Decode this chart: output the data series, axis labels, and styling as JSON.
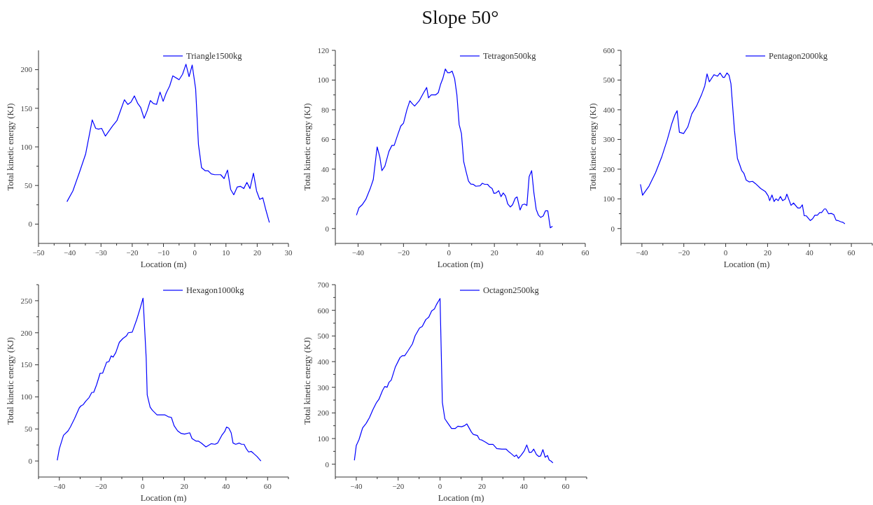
{
  "chart_data": [
    {
      "type": "line",
      "xlabel": "Location (m)",
      "ylabel": "Total kinetic energy (KJ)",
      "legend": "top right",
      "xlim": [
        -50,
        30
      ],
      "xticks": [
        -50,
        {
          "value": -45,
          "label": null
        },
        -40,
        {
          "value": -35,
          "label": null
        },
        -30,
        {
          "value": -25,
          "label": null
        },
        -20,
        {
          "value": -15,
          "label": null
        },
        -10,
        {
          "value": -5,
          "label": null
        },
        0,
        {
          "value": 5,
          "label": null
        },
        10,
        {
          "value": 15,
          "label": null
        },
        20,
        {
          "value": 25,
          "label": null
        },
        30
      ],
      "ylim": [
        -25,
        225
      ],
      "yticks": [
        0,
        {
          "value": 25,
          "label": null
        },
        50,
        {
          "value": 75,
          "label": null
        },
        100,
        {
          "value": 125,
          "label": null
        },
        150,
        {
          "value": 175,
          "label": null
        },
        200
      ],
      "series": [
        {
          "name": "Triangle1500kg",
          "color": "#0000ff",
          "x": [
            -40.9,
            -39.0,
            -36.9,
            -34.9,
            -32.8,
            -31.7,
            -30.8,
            -29.8,
            -28.6,
            -26.3,
            -24.9,
            -23.4,
            -22.5,
            -21.4,
            -20.4,
            -19.3,
            -18.2,
            -17.3,
            -16.2,
            -15.2,
            -14.2,
            -13.2,
            -12.2,
            -11.1,
            -10.1,
            -9.1,
            -8.0,
            -7.0,
            -5.0,
            -3.9,
            -2.8,
            -1.8,
            -0.8,
            0.3,
            1.2,
            2.2,
            3.4,
            4.3,
            5.3,
            6.4,
            8.3,
            9.4,
            10.5,
            11.5,
            12.5,
            13.6,
            14.6,
            15.7,
            16.7,
            17.7,
            18.8,
            19.8,
            20.8,
            21.8,
            22.8,
            23.9
          ],
          "values": [
            29,
            43,
            67,
            91,
            135,
            124,
            123,
            124,
            114,
            127,
            134,
            151,
            161,
            155,
            158,
            166,
            156,
            151,
            137,
            147,
            160,
            156,
            155,
            171,
            159,
            170,
            179,
            192,
            187,
            194,
            207,
            191,
            206,
            175,
            103,
            73,
            69,
            69,
            65,
            64,
            64,
            59,
            70,
            45,
            38,
            48,
            49,
            46,
            54,
            46,
            66,
            43,
            32,
            34,
            18,
            2
          ]
        }
      ]
    },
    {
      "type": "line",
      "title": "Slope 50°",
      "xlabel": "Location (m)",
      "ylabel": "Total kinetic energy (KJ)",
      "legend": "top right",
      "xlim": [
        -50,
        60
      ],
      "xticks": [
        {
          "value": -50,
          "label": null
        },
        -40,
        {
          "value": -30,
          "label": null
        },
        -20,
        {
          "value": -10,
          "label": null
        },
        0,
        {
          "value": 10,
          "label": null
        },
        20,
        {
          "value": 30,
          "label": null
        },
        40,
        {
          "value": 50,
          "label": null
        },
        60
      ],
      "ylim": [
        -10,
        120
      ],
      "yticks": [
        0,
        {
          "value": 10,
          "label": null
        },
        20,
        {
          "value": 30,
          "label": null
        },
        40,
        {
          "value": 50,
          "label": null
        },
        60,
        {
          "value": 70,
          "label": null
        },
        80,
        {
          "value": 90,
          "label": null
        },
        100,
        {
          "value": 110,
          "label": null
        },
        120
      ],
      "series": [
        {
          "name": "Tetragon500kg",
          "color": "#0000ff",
          "x": [
            -40.7,
            -39.6,
            -38.2,
            -36.6,
            -34.7,
            -33.3,
            -31.6,
            -30.4,
            -29.5,
            -28.2,
            -26.4,
            -25.1,
            -24.1,
            -22.8,
            -21.2,
            -20.0,
            -18.5,
            -17.2,
            -16.1,
            -15.1,
            -13.1,
            -11.3,
            -9.8,
            -9.0,
            -7.8,
            -5.9,
            -4.7,
            -3.7,
            -2.7,
            -1.6,
            -0.6,
            0.4,
            1.4,
            2.5,
            3.5,
            4.5,
            5.5,
            6.5,
            7.6,
            8.6,
            9.6,
            10.8,
            11.8,
            13.7,
            14.7,
            15.7,
            17.0,
            18.0,
            19.0,
            19.8,
            20.8,
            21.9,
            22.9,
            23.9,
            24.9,
            25.9,
            27.0,
            28.0,
            29.2,
            30.0,
            31.3,
            32.3,
            33.3,
            34.3,
            35.3,
            36.4,
            37.4,
            38.4,
            39.4,
            40.4,
            41.5,
            42.5,
            43.5,
            44.6,
            45.6
          ],
          "values": [
            9,
            14,
            16,
            19.6,
            26.7,
            33,
            55,
            48,
            39,
            42,
            52,
            56,
            56,
            62,
            69,
            71,
            80,
            86,
            84,
            82.5,
            86,
            91,
            95,
            88,
            90,
            90,
            91.5,
            97,
            101,
            107.5,
            105,
            105,
            106,
            101,
            90,
            70,
            64,
            45,
            38,
            32,
            30,
            29.7,
            28.5,
            28.8,
            30.5,
            29.8,
            29.8,
            28,
            27,
            23.7,
            24,
            25.5,
            21.5,
            24,
            22,
            16.5,
            14.5,
            16,
            20.5,
            21.3,
            12.5,
            16,
            16.5,
            15.5,
            35,
            39,
            24,
            13,
            9,
            7.5,
            8.5,
            12,
            12,
            0.5,
            1.5
          ]
        }
      ]
    },
    {
      "type": "line",
      "xlabel": "Location (m)",
      "ylabel": "Total kinetic energy (KJ)",
      "legend": "top right",
      "xlim": [
        -50,
        70
      ],
      "xticks": [
        {
          "value": -50,
          "label": null
        },
        -40,
        {
          "value": -30,
          "label": null
        },
        -20,
        {
          "value": -10,
          "label": null
        },
        0,
        {
          "value": 10,
          "label": null
        },
        20,
        {
          "value": 30,
          "label": null
        },
        40,
        {
          "value": 50,
          "label": null
        },
        60,
        {
          "value": 70,
          "label": null
        }
      ],
      "ylim": [
        -50,
        600
      ],
      "yticks": [
        0,
        {
          "value": 50,
          "label": null
        },
        100,
        {
          "value": 150,
          "label": null
        },
        200,
        {
          "value": 250,
          "label": null
        },
        300,
        {
          "value": 350,
          "label": null
        },
        400,
        {
          "value": 450,
          "label": null
        },
        500,
        {
          "value": 550,
          "label": null
        },
        600
      ],
      "series": [
        {
          "name": "Pentagon2000kg",
          "color": "#0000ff",
          "x": [
            -40.7,
            -39.7,
            -36.6,
            -33.5,
            -30.4,
            -27.9,
            -25.7,
            -24.3,
            -23.2,
            -22.1,
            -20.1,
            -18.1,
            -16.2,
            -13.9,
            -11.4,
            -10.0,
            -8.9,
            -7.8,
            -5.6,
            -3.9,
            -2.7,
            -1.3,
            -0.6,
            0.6,
            1.6,
            2.5,
            4.2,
            5.6,
            6.7,
            7.6,
            8.7,
            9.8,
            11.2,
            12.8,
            14.3,
            16.7,
            19.0,
            20.3,
            21.0,
            22.1,
            23.1,
            24.0,
            25.1,
            26.1,
            27.2,
            28.4,
            29.2,
            31.2,
            32.4,
            34.4,
            35.5,
            36.6,
            37.5,
            38.5,
            40.4,
            41.5,
            42.6,
            43.8,
            44.9,
            45.8,
            47.1,
            47.8,
            49.1,
            50.4,
            51.6,
            52.7,
            53.6,
            54.9,
            56.0,
            56.9
          ],
          "values": [
            149,
            112,
            143,
            188,
            244,
            299,
            354,
            382,
            397,
            324,
            320,
            342,
            386,
            413,
            453,
            480,
            521,
            494,
            518,
            513,
            524,
            509,
            509,
            524,
            516,
            488,
            330,
            236,
            215,
            196,
            186,
            163,
            157,
            159,
            151,
            135,
            124,
            110,
            94,
            113,
            91,
            100,
            94,
            108,
            94,
            99,
            116,
            78,
            86,
            69,
            69,
            80,
            43,
            43,
            27,
            33,
            45,
            45,
            54,
            54,
            66,
            66,
            50,
            51,
            47,
            28,
            27,
            23,
            21,
            16
          ]
        }
      ]
    },
    {
      "type": "line",
      "xlabel": "Location (m)",
      "ylabel": "Total kinetic energy (KJ)",
      "legend": "top right",
      "xlim": [
        -50,
        70
      ],
      "xticks": [
        {
          "value": -50,
          "label": null
        },
        -40,
        {
          "value": -30,
          "label": null
        },
        -20,
        {
          "value": -10,
          "label": null
        },
        0,
        {
          "value": 10,
          "label": null
        },
        20,
        {
          "value": 30,
          "label": null
        },
        40,
        {
          "value": 50,
          "label": null
        },
        60,
        {
          "value": 70,
          "label": null
        }
      ],
      "ylim": [
        -25,
        275
      ],
      "yticks": [
        0,
        {
          "value": 25,
          "label": null
        },
        50,
        {
          "value": 75,
          "label": null
        },
        100,
        {
          "value": 125,
          "label": null
        },
        150,
        {
          "value": 175,
          "label": null
        },
        200,
        {
          "value": 225,
          "label": null
        },
        250,
        {
          "value": 275,
          "label": null
        }
      ],
      "series": [
        {
          "name": "Hexagon1000kg",
          "color": "#0000ff",
          "x": [
            -41.0,
            -40.0,
            -38.0,
            -35.8,
            -34.7,
            -32.7,
            -30.4,
            -29.6,
            -28.5,
            -27.4,
            -25.7,
            -24.4,
            -23.5,
            -22.1,
            -20.4,
            -19.2,
            -17.3,
            -16.2,
            -15.1,
            -14.2,
            -12.9,
            -11.2,
            -9.5,
            -7.8,
            -6.9,
            -5.0,
            -2.8,
            -1.3,
            0.2,
            1.7,
            2.2,
            3.6,
            4.7,
            6.9,
            10.6,
            12.3,
            13.8,
            15.1,
            16.8,
            18.5,
            20.1,
            22.6,
            23.7,
            25.7,
            26.8,
            28.2,
            29.3,
            30.4,
            31.9,
            33.0,
            34.7,
            36.0,
            38.0,
            39.4,
            40.3,
            41.4,
            42.5,
            43.4,
            44.7,
            46.4,
            47.5,
            48.7,
            49.8,
            50.9,
            52.1,
            53.2,
            54.9,
            56.8
          ],
          "values": [
            1,
            19,
            40,
            47,
            53,
            66,
            83,
            86,
            88,
            93,
            99,
            107,
            107,
            119,
            137,
            137,
            154,
            155,
            164,
            162,
            169,
            185,
            191,
            195,
            200,
            201,
            221,
            237,
            254,
            161,
            103,
            84,
            79,
            72,
            72,
            69,
            68,
            55,
            47,
            43,
            42,
            44,
            35,
            31,
            31,
            28,
            25,
            22,
            25,
            27,
            26,
            28,
            40,
            46,
            53,
            51,
            44,
            28,
            26,
            28,
            26,
            26,
            19,
            14,
            15,
            12,
            7,
            0
          ]
        }
      ]
    },
    {
      "type": "line",
      "xlabel": "Location (m)",
      "ylabel": "Total kinetic energy (KJ)",
      "legend": "top right",
      "xlim": [
        -50,
        70
      ],
      "xticks": [
        {
          "value": -50,
          "label": null
        },
        -40,
        {
          "value": -30,
          "label": null
        },
        -20,
        {
          "value": -10,
          "label": null
        },
        0,
        {
          "value": 10,
          "label": null
        },
        20,
        {
          "value": 30,
          "label": null
        },
        40,
        {
          "value": 50,
          "label": null
        },
        60,
        {
          "value": 70,
          "label": null
        }
      ],
      "ylim": [
        -50,
        700
      ],
      "yticks": [
        0,
        {
          "value": 50,
          "label": null
        },
        100,
        {
          "value": 150,
          "label": null
        },
        200,
        {
          "value": 250,
          "label": null
        },
        300,
        {
          "value": 350,
          "label": null
        },
        400,
        {
          "value": 450,
          "label": null
        },
        500,
        {
          "value": 550,
          "label": null
        },
        600,
        {
          "value": 650,
          "label": null
        },
        700
      ],
      "series": [
        {
          "name": "Octagon2500kg",
          "color": "#0000ff",
          "x": [
            -40.9,
            -40.0,
            -38.7,
            -37.0,
            -35.3,
            -33.7,
            -32.0,
            -30.3,
            -29.2,
            -27.5,
            -26.4,
            -25.3,
            -24.4,
            -23.3,
            -21.4,
            -19.1,
            -18.0,
            -16.9,
            -15.4,
            -13.2,
            -11.9,
            -9.8,
            -8.5,
            -6.8,
            -5.4,
            -4.0,
            -2.7,
            -1.6,
            0.0,
            1.1,
            2.3,
            3.8,
            5.5,
            7.2,
            8.5,
            10.3,
            11.6,
            12.8,
            15.0,
            15.9,
            17.8,
            18.9,
            20.0,
            21.9,
            23.4,
            25.3,
            27.1,
            29.5,
            31.5,
            32.9,
            34.0,
            35.5,
            36.5,
            37.4,
            38.7,
            40.2,
            41.4,
            42.6,
            43.7,
            44.7,
            46.0,
            47.2,
            48.0,
            49.1,
            50.2,
            51.3,
            52.1,
            53.0,
            53.9
          ],
          "values": [
            15,
            73,
            96,
            141,
            159,
            182,
            214,
            241,
            253,
            287,
            303,
            300,
            319,
            328,
            378,
            416,
            423,
            423,
            441,
            469,
            501,
            531,
            537,
            564,
            573,
            598,
            605,
            624,
            646,
            241,
            177,
            159,
            139,
            139,
            148,
            146,
            150,
            157,
            125,
            116,
            112,
            96,
            94,
            85,
            77,
            77,
            61,
            59,
            59,
            48,
            41,
            30,
            36,
            23,
            35,
            52,
            75,
            46,
            47,
            59,
            38,
            30,
            32,
            57,
            27,
            34,
            16,
            12,
            5
          ]
        }
      ]
    }
  ]
}
